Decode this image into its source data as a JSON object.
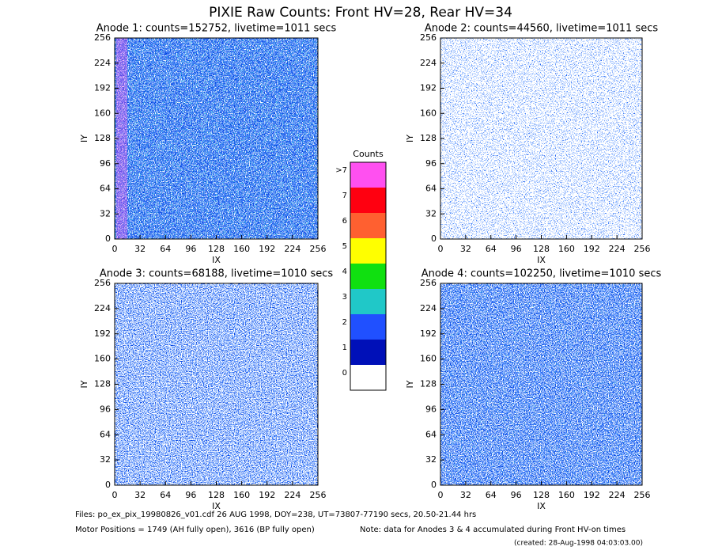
{
  "chart_data": {
    "type": "heatmap",
    "title": "PIXIE Raw Counts:  Front HV=28, Rear HV=34",
    "panels": [
      {
        "title": "Anode 1: counts=152752, livetime=1011 secs",
        "xlabel": "IX",
        "ylabel": "IY",
        "xlim": [
          0,
          256
        ],
        "ylim": [
          0,
          256
        ],
        "xticks": [
          0,
          32,
          64,
          96,
          128,
          160,
          192,
          224,
          256
        ],
        "yticks": [
          0,
          32,
          64,
          96,
          128,
          160,
          192,
          224,
          256
        ]
      },
      {
        "title": "Anode 2: counts=44560, livetime=1011 secs",
        "xlabel": "IX",
        "ylabel": "IY",
        "xlim": [
          0,
          256
        ],
        "ylim": [
          0,
          256
        ],
        "xticks": [
          0,
          32,
          64,
          96,
          128,
          160,
          192,
          224,
          256
        ],
        "yticks": [
          0,
          32,
          64,
          96,
          128,
          160,
          192,
          224,
          256
        ]
      },
      {
        "title": "Anode 3: counts=68188, livetime=1010 secs",
        "xlabel": "IX",
        "ylabel": "IY",
        "xlim": [
          0,
          256
        ],
        "ylim": [
          0,
          256
        ],
        "xticks": [
          0,
          32,
          64,
          96,
          128,
          160,
          192,
          224,
          256
        ],
        "yticks": [
          0,
          32,
          64,
          96,
          128,
          160,
          192,
          224,
          256
        ]
      },
      {
        "title": "Anode 4: counts=102250, livetime=1010 secs",
        "xlabel": "IX",
        "ylabel": "IY",
        "xlim": [
          0,
          256
        ],
        "ylim": [
          0,
          256
        ],
        "xticks": [
          0,
          32,
          64,
          96,
          128,
          160,
          192,
          224,
          256
        ],
        "yticks": [
          0,
          32,
          64,
          96,
          128,
          160,
          192,
          224,
          256
        ]
      }
    ],
    "colorbar": {
      "title": "Counts",
      "ticks": [
        0,
        1,
        2,
        3,
        4,
        5,
        6,
        7,
        {
          "value": 8,
          "label": ">7"
        }
      ],
      "colors": [
        "#ffffff",
        "#0010b8",
        "#2050ff",
        "#20c8c8",
        "#10e010",
        "#ffff00",
        "#ff6030",
        "#ff0010",
        "#ff50f0"
      ]
    },
    "footer": {
      "files": "Files: po_ex_pix_19980826_v01.cdf    26 AUG 1998, DOY=238, UT=73807-77190 secs, 20.50-21.44 hrs",
      "motor": "Motor Positions = 1749 (AH fully open), 3616 (BP fully open)",
      "note": "Note: data for Anodes 3 & 4 accumulated during Front HV-on times",
      "created": "(created: 28-Aug-1998 04:03:03.00)"
    }
  }
}
